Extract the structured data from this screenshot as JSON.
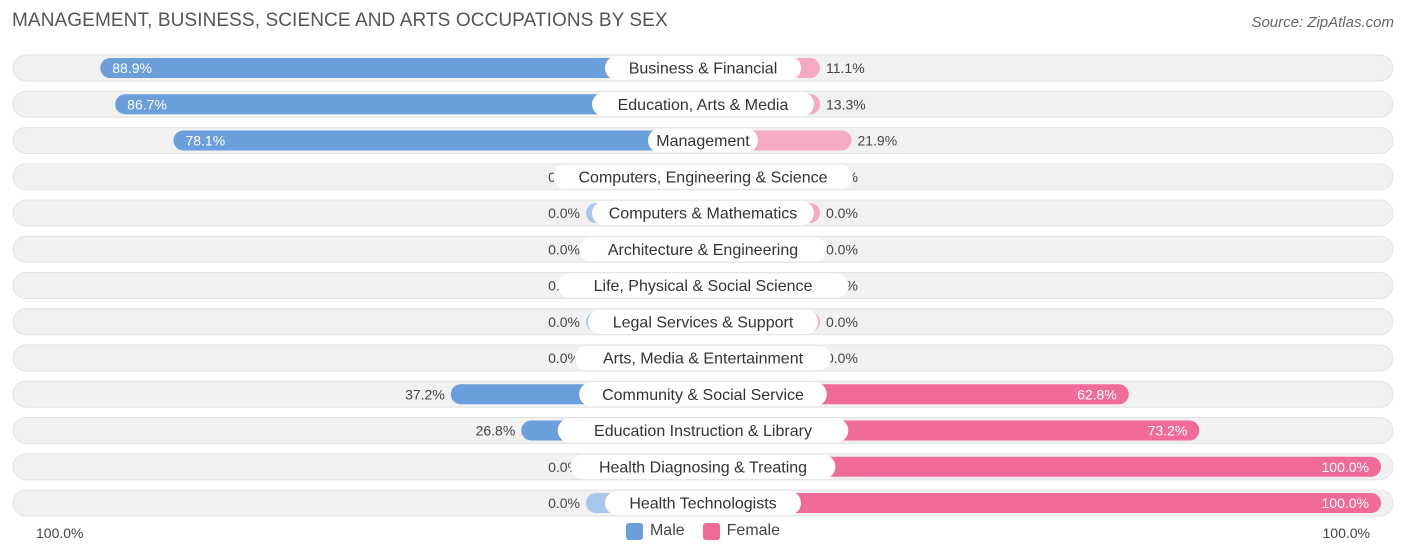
{
  "title": "MANAGEMENT, BUSINESS, SCIENCE AND ARTS OCCUPATIONS BY SEX",
  "source": "Source: ZipAtlas.com",
  "colors": {
    "male": "#6a9fdc",
    "male_light": "#a9c7ec",
    "female": "#f06b96",
    "female_light": "#f6a9c2",
    "track": "#f1f1f1"
  },
  "legend": {
    "male": "Male",
    "female": "Female"
  },
  "axis": {
    "left_label": "100.0%",
    "right_label": "100.0%"
  },
  "chart_data": {
    "type": "bar",
    "orientation": "horizontal-diverging",
    "title": "MANAGEMENT, BUSINESS, SCIENCE AND ARTS OCCUPATIONS BY SEX",
    "xlim": [
      -100,
      100
    ],
    "categories": [
      "Business & Financial",
      "Education, Arts & Media",
      "Management",
      "Computers, Engineering & Science",
      "Computers & Mathematics",
      "Architecture & Engineering",
      "Life, Physical & Social Science",
      "Legal Services & Support",
      "Arts, Media & Entertainment",
      "Community & Social Service",
      "Education Instruction & Library",
      "Health Diagnosing & Treating",
      "Health Technologists"
    ],
    "series": [
      {
        "name": "Male",
        "values": [
          88.9,
          86.7,
          78.1,
          0.0,
          0.0,
          0.0,
          0.0,
          0.0,
          0.0,
          37.2,
          26.8,
          0.0,
          0.0
        ]
      },
      {
        "name": "Female",
        "values": [
          11.1,
          13.3,
          21.9,
          0.0,
          0.0,
          0.0,
          0.0,
          0.0,
          0.0,
          62.8,
          73.2,
          100.0,
          100.0
        ]
      }
    ],
    "labels": {
      "male": [
        "88.9%",
        "86.7%",
        "78.1%",
        "0.0%",
        "0.0%",
        "0.0%",
        "0.0%",
        "0.0%",
        "0.0%",
        "37.2%",
        "26.8%",
        "0.0%",
        "0.0%"
      ],
      "female": [
        "11.1%",
        "13.3%",
        "21.9%",
        "0.0%",
        "0.0%",
        "0.0%",
        "0.0%",
        "0.0%",
        "0.0%",
        "62.8%",
        "73.2%",
        "100.0%",
        "100.0%"
      ]
    },
    "legend_position": "bottom-center"
  }
}
